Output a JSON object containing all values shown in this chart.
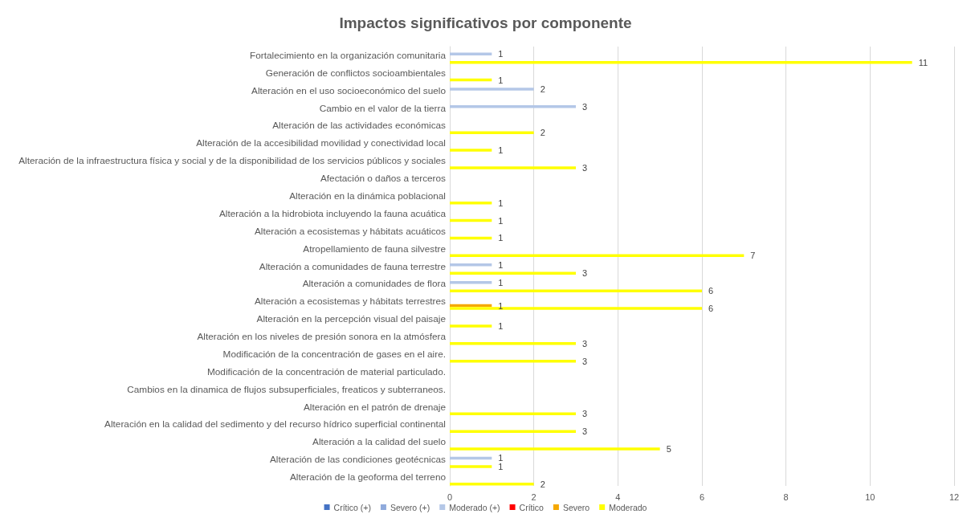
{
  "chart_data": {
    "type": "bar",
    "orientation": "horizontal",
    "title": "Impactos significativos por componente",
    "categories": [
      "Fortalecimiento en la organización comunitaria",
      "Generación de conflictos socioambientales",
      "Alteración en el uso socioeconómico del suelo",
      "Cambio en el valor de la tierra",
      "Alteración de las actividades económicas",
      "Alteración de la accesibilidad movilidad y conectividad local",
      "Alteración de la infraestructura física y social y de la disponibilidad de los servicios públicos y sociales",
      "Afectación o daños a terceros",
      "Alteración en la dinámica poblacional",
      "Alteración a la hidrobiota incluyendo la fauna acuática",
      "Alteración a ecosistemas y hábitats acuáticos",
      "Atropellamiento de fauna silvestre",
      "Alteración a comunidades de fauna terrestre",
      "Alteración a comunidades de flora",
      "Alteración a ecosistemas y hábitats terrestres",
      "Alteración en la percepción visual del paisaje",
      "Alteración en los niveles de presión sonora en la atmósfera",
      "Modificación de la concentración de gases en el aire.",
      "Modificación de la concentración de material particulado.",
      "Cambios en la dinamica de flujos subsuperficiales, freaticos y subterraneos.",
      "Alteración en el patrón de drenaje",
      "Alteración en la calidad del sedimento y del recurso hídrico superficial continental",
      "Alteración a la calidad del suelo",
      "Alteración de las condiciones geotécnicas",
      "Alteración de la geoforma del terreno"
    ],
    "series": [
      {
        "name": "Crítico (+)",
        "color": "#4472c4",
        "values": [
          0,
          0,
          0,
          0,
          0,
          0,
          0,
          0,
          0,
          0,
          0,
          0,
          0,
          0,
          0,
          0,
          0,
          0,
          0,
          0,
          0,
          0,
          0,
          0,
          0
        ]
      },
      {
        "name": "Severo (+)",
        "color": "#8faadc",
        "values": [
          0,
          0,
          0,
          0,
          0,
          0,
          0,
          0,
          0,
          0,
          0,
          0,
          0,
          0,
          0,
          0,
          0,
          0,
          0,
          0,
          0,
          0,
          0,
          0,
          0
        ]
      },
      {
        "name": "Moderado (+)",
        "color": "#b4c7e7",
        "values": [
          1,
          0,
          2,
          3,
          0,
          0,
          0,
          0,
          0,
          0,
          0,
          0,
          1,
          1,
          0,
          0,
          0,
          0,
          0,
          0,
          0,
          0,
          0,
          1,
          0
        ],
        "value_labels": [
          "1",
          null,
          "2",
          "3",
          null,
          null,
          null,
          null,
          null,
          null,
          null,
          null,
          "1",
          "1",
          null,
          null,
          null,
          null,
          null,
          null,
          null,
          null,
          null,
          "1",
          null
        ]
      },
      {
        "name": "Crítico",
        "color": "#ff0000",
        "values": [
          0,
          0,
          0,
          0,
          0,
          0,
          0,
          0,
          0,
          0,
          0,
          0,
          0,
          0,
          0,
          0,
          0,
          0,
          0,
          0,
          0,
          0,
          0,
          0,
          0
        ]
      },
      {
        "name": "Severo",
        "color": "#f5a800",
        "values": [
          0,
          0,
          0,
          0,
          0,
          0,
          0,
          0,
          0,
          0,
          0,
          0,
          0,
          0,
          1,
          0,
          0,
          0,
          0,
          0,
          0,
          0,
          0,
          0,
          0
        ],
        "value_labels": [
          null,
          null,
          null,
          null,
          null,
          null,
          null,
          null,
          null,
          null,
          null,
          null,
          null,
          null,
          "1",
          null,
          null,
          null,
          null,
          null,
          null,
          null,
          null,
          null,
          null
        ]
      },
      {
        "name": "Moderado",
        "color": "#ffff00",
        "values": [
          11,
          1,
          0,
          0,
          2,
          1,
          3,
          0,
          1,
          1,
          1,
          7,
          3,
          6,
          6,
          1,
          3,
          3,
          0,
          0,
          3,
          3,
          5,
          1,
          2
        ],
        "value_labels": [
          "11",
          "1",
          null,
          null,
          "2",
          "1",
          "3",
          null,
          "1",
          "1",
          "1",
          "7",
          "3",
          "6",
          "6",
          "1",
          "3",
          "3",
          null,
          null,
          "3",
          "3",
          "5",
          "1",
          "2"
        ]
      }
    ],
    "xlim": [
      0,
      12
    ],
    "xticks": [
      0,
      2,
      4,
      6,
      8,
      10,
      12
    ],
    "grid": "x",
    "legend": "bottom"
  }
}
